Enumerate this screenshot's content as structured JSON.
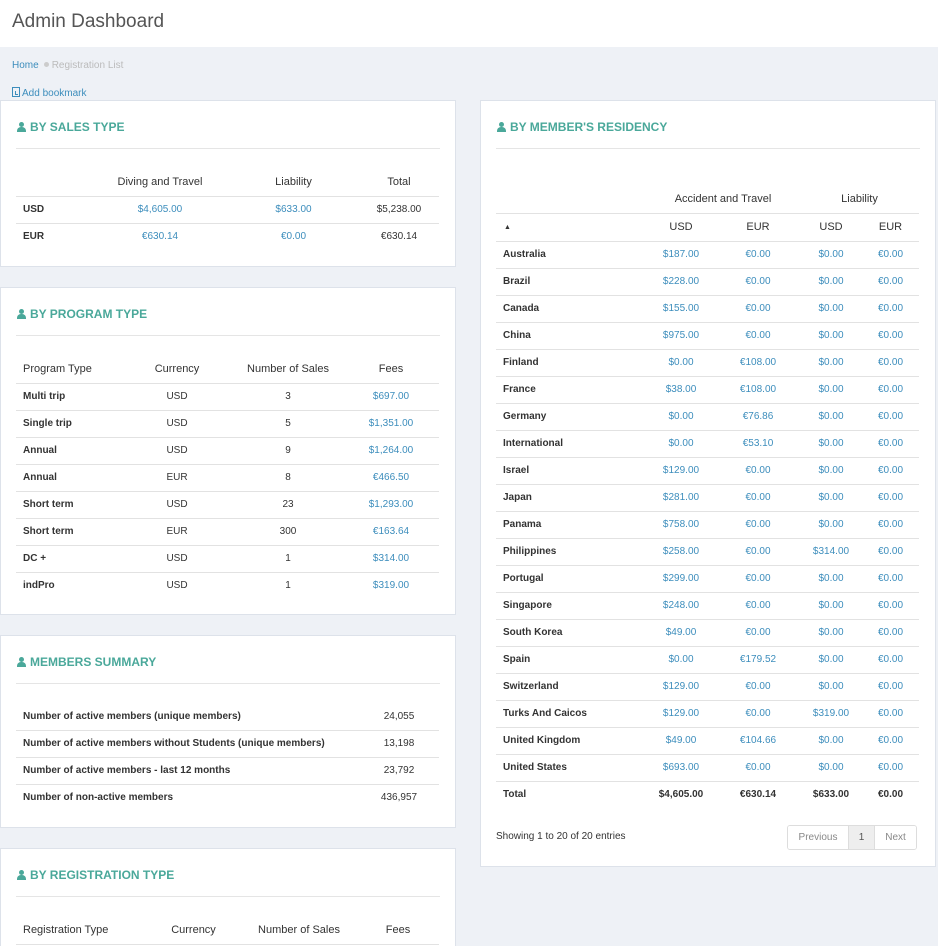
{
  "header": {
    "title": "Admin Dashboard"
  },
  "breadcrumb": {
    "home": "Home",
    "current": "Registration List"
  },
  "bookmark": {
    "label": "Add bookmark"
  },
  "sales_type": {
    "title": "BY SALES TYPE",
    "headers": [
      "Diving and Travel",
      "Liability",
      "Total"
    ],
    "rows": [
      {
        "label": "USD",
        "diving": "$4,605.00",
        "liability": "$633.00",
        "total": "$5,238.00"
      },
      {
        "label": "EUR",
        "diving": "€630.14",
        "liability": "€0.00",
        "total": "€630.14"
      }
    ]
  },
  "program_type": {
    "title": "BY PROGRAM TYPE",
    "headers": [
      "Program Type",
      "Currency",
      "Number of Sales",
      "Fees"
    ],
    "rows": [
      {
        "type": "Multi trip",
        "currency": "USD",
        "sales": "3",
        "fees": "$697.00"
      },
      {
        "type": "Single trip",
        "currency": "USD",
        "sales": "5",
        "fees": "$1,351.00"
      },
      {
        "type": "Annual",
        "currency": "USD",
        "sales": "9",
        "fees": "$1,264.00"
      },
      {
        "type": "Annual",
        "currency": "EUR",
        "sales": "8",
        "fees": "€466.50"
      },
      {
        "type": "Short term",
        "currency": "USD",
        "sales": "23",
        "fees": "$1,293.00"
      },
      {
        "type": "Short term",
        "currency": "EUR",
        "sales": "300",
        "fees": "€163.64"
      },
      {
        "type": "DC +",
        "currency": "USD",
        "sales": "1",
        "fees": "$314.00"
      },
      {
        "type": "indPro",
        "currency": "USD",
        "sales": "1",
        "fees": "$319.00"
      }
    ]
  },
  "members_summary": {
    "title": "MEMBERS SUMMARY",
    "rows": [
      {
        "label": "Number of active members (unique members)",
        "value": "24,055"
      },
      {
        "label": "Number of active members without Students (unique members)",
        "value": "13,198"
      },
      {
        "label": "Number of active members - last 12 months",
        "value": "23,792"
      },
      {
        "label": "Number of non-active members",
        "value": "436,957"
      }
    ]
  },
  "registration_type": {
    "title": "BY REGISTRATION TYPE",
    "headers": [
      "Registration Type",
      "Currency",
      "Number of Sales",
      "Fees"
    ]
  },
  "residency": {
    "title": "BY MEMBER'S RESIDENCY",
    "group_headers": [
      "Accident and Travel",
      "Liability"
    ],
    "sort_indicator": "▲",
    "sub_headers": [
      "USD",
      "EUR",
      "USD",
      "EUR"
    ],
    "rows": [
      {
        "country": "Australia",
        "at_usd": "$187.00",
        "at_eur": "€0.00",
        "li_usd": "$0.00",
        "li_eur": "€0.00"
      },
      {
        "country": "Brazil",
        "at_usd": "$228.00",
        "at_eur": "€0.00",
        "li_usd": "$0.00",
        "li_eur": "€0.00"
      },
      {
        "country": "Canada",
        "at_usd": "$155.00",
        "at_eur": "€0.00",
        "li_usd": "$0.00",
        "li_eur": "€0.00"
      },
      {
        "country": "China",
        "at_usd": "$975.00",
        "at_eur": "€0.00",
        "li_usd": "$0.00",
        "li_eur": "€0.00"
      },
      {
        "country": "Finland",
        "at_usd": "$0.00",
        "at_eur": "€108.00",
        "li_usd": "$0.00",
        "li_eur": "€0.00"
      },
      {
        "country": "France",
        "at_usd": "$38.00",
        "at_eur": "€108.00",
        "li_usd": "$0.00",
        "li_eur": "€0.00"
      },
      {
        "country": "Germany",
        "at_usd": "$0.00",
        "at_eur": "€76.86",
        "li_usd": "$0.00",
        "li_eur": "€0.00"
      },
      {
        "country": "International",
        "at_usd": "$0.00",
        "at_eur": "€53.10",
        "li_usd": "$0.00",
        "li_eur": "€0.00"
      },
      {
        "country": "Israel",
        "at_usd": "$129.00",
        "at_eur": "€0.00",
        "li_usd": "$0.00",
        "li_eur": "€0.00"
      },
      {
        "country": "Japan",
        "at_usd": "$281.00",
        "at_eur": "€0.00",
        "li_usd": "$0.00",
        "li_eur": "€0.00"
      },
      {
        "country": "Panama",
        "at_usd": "$758.00",
        "at_eur": "€0.00",
        "li_usd": "$0.00",
        "li_eur": "€0.00"
      },
      {
        "country": "Philippines",
        "at_usd": "$258.00",
        "at_eur": "€0.00",
        "li_usd": "$314.00",
        "li_eur": "€0.00"
      },
      {
        "country": "Portugal",
        "at_usd": "$299.00",
        "at_eur": "€0.00",
        "li_usd": "$0.00",
        "li_eur": "€0.00"
      },
      {
        "country": "Singapore",
        "at_usd": "$248.00",
        "at_eur": "€0.00",
        "li_usd": "$0.00",
        "li_eur": "€0.00"
      },
      {
        "country": "South Korea",
        "at_usd": "$49.00",
        "at_eur": "€0.00",
        "li_usd": "$0.00",
        "li_eur": "€0.00"
      },
      {
        "country": "Spain",
        "at_usd": "$0.00",
        "at_eur": "€179.52",
        "li_usd": "$0.00",
        "li_eur": "€0.00"
      },
      {
        "country": "Switzerland",
        "at_usd": "$129.00",
        "at_eur": "€0.00",
        "li_usd": "$0.00",
        "li_eur": "€0.00"
      },
      {
        "country": "Turks And Caicos",
        "at_usd": "$129.00",
        "at_eur": "€0.00",
        "li_usd": "$319.00",
        "li_eur": "€0.00"
      },
      {
        "country": "United Kingdom",
        "at_usd": "$49.00",
        "at_eur": "€104.66",
        "li_usd": "$0.00",
        "li_eur": "€0.00"
      },
      {
        "country": "United States",
        "at_usd": "$693.00",
        "at_eur": "€0.00",
        "li_usd": "$0.00",
        "li_eur": "€0.00"
      }
    ],
    "total": {
      "label": "Total",
      "at_usd": "$4,605.00",
      "at_eur": "€630.14",
      "li_usd": "$633.00",
      "li_eur": "€0.00"
    },
    "info": "Showing 1 to 20 of 20 entries",
    "pager": {
      "previous": "Previous",
      "page": "1",
      "next": "Next"
    }
  },
  "colors": {
    "accent": "#4aa89a",
    "link": "#3c8dbc",
    "background": "#eef1f6"
  }
}
